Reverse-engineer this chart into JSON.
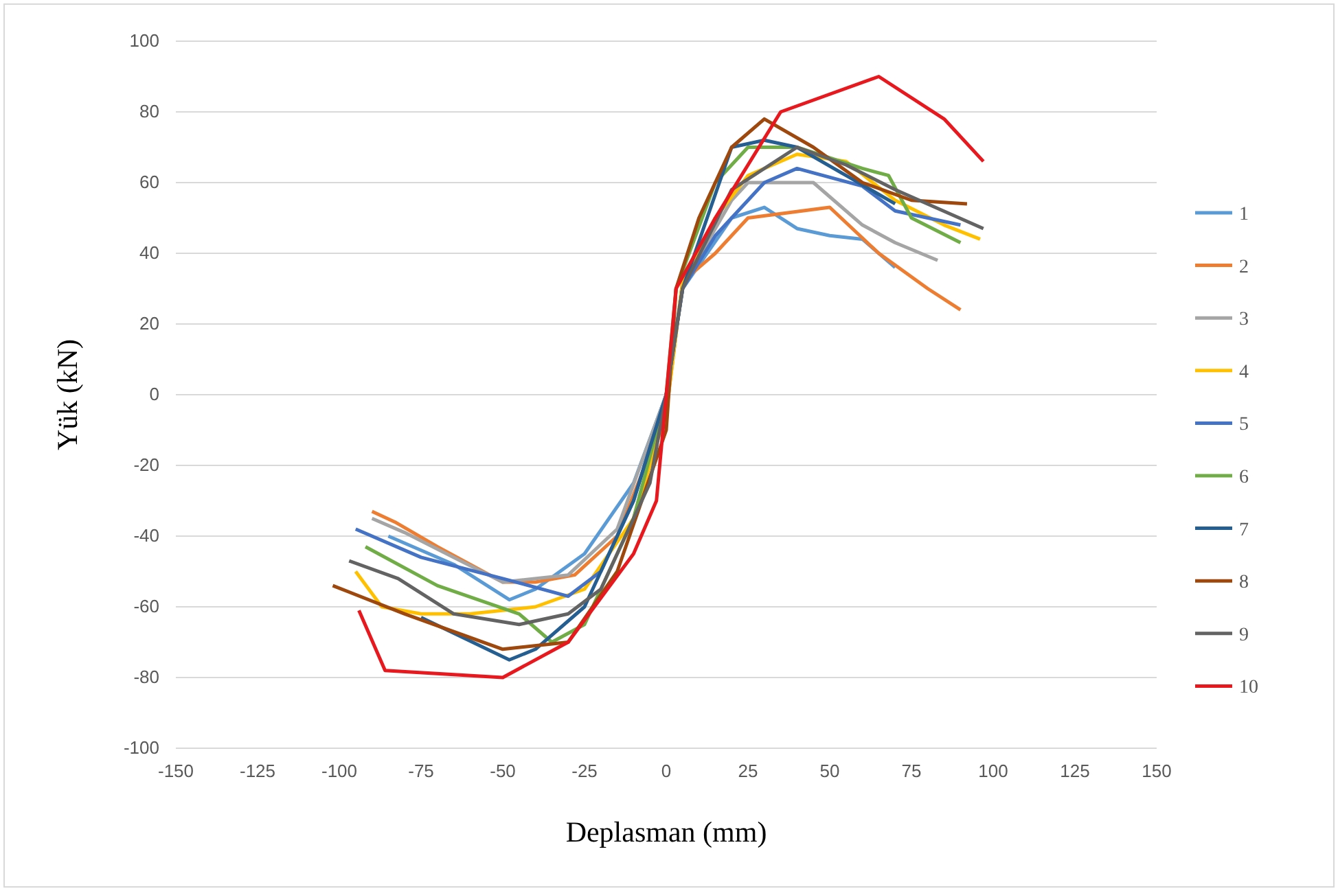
{
  "chart_data": {
    "type": "line",
    "xlabel": "Deplasman (mm)",
    "ylabel": "Yük (kN)",
    "xlim": [
      -150,
      150
    ],
    "ylim": [
      -100,
      100
    ],
    "xticks": [
      -150,
      -125,
      -100,
      -75,
      -50,
      -25,
      0,
      25,
      50,
      75,
      100,
      125,
      150
    ],
    "yticks": [
      -100,
      -80,
      -60,
      -40,
      -20,
      0,
      20,
      40,
      60,
      80,
      100
    ],
    "grid": "y",
    "legend": "right",
    "marker": "none",
    "line_style": "solid",
    "series": [
      {
        "name": "1",
        "color": "#5b9bd5",
        "x": [
          -85,
          -65,
          -48,
          -40,
          -25,
          -10,
          0,
          5,
          20,
          30,
          40,
          50,
          60,
          70
        ],
        "values": [
          -40,
          -48,
          -58,
          -55,
          -45,
          -25,
          0,
          30,
          50,
          53,
          47,
          45,
          44,
          36
        ]
      },
      {
        "name": "2",
        "color": "#ed7d31",
        "x": [
          -90,
          -83,
          -70,
          -50,
          -40,
          -28,
          -15,
          0,
          5,
          15,
          25,
          50,
          65,
          80,
          90
        ],
        "values": [
          -33,
          -36,
          -43,
          -53,
          -53,
          -51,
          -40,
          -5,
          32,
          40,
          50,
          53,
          40,
          30,
          24
        ]
      },
      {
        "name": "3",
        "color": "#a5a5a5",
        "x": [
          -90,
          -80,
          -65,
          -50,
          -30,
          -15,
          0,
          5,
          20,
          25,
          45,
          60,
          70,
          83
        ],
        "values": [
          -35,
          -39,
          -46,
          -53,
          -51,
          -38,
          0,
          31,
          55,
          60,
          60,
          48,
          43,
          38
        ]
      },
      {
        "name": "4",
        "color": "#ffc000",
        "x": [
          -95,
          -87,
          -75,
          -60,
          -40,
          -25,
          -10,
          0,
          5,
          15,
          25,
          40,
          55,
          70,
          85,
          96
        ],
        "values": [
          -50,
          -60,
          -62,
          -62,
          -60,
          -55,
          -35,
          -5,
          32,
          50,
          62,
          68,
          66,
          55,
          48,
          44
        ]
      },
      {
        "name": "5",
        "color": "#4472c4",
        "x": [
          -95,
          -75,
          -50,
          -30,
          -20,
          -10,
          0,
          5,
          15,
          30,
          40,
          60,
          70,
          90
        ],
        "values": [
          -38,
          -46,
          -52,
          -57,
          -50,
          -30,
          0,
          30,
          45,
          60,
          64,
          59,
          52,
          48
        ]
      },
      {
        "name": "6",
        "color": "#70ad47",
        "x": [
          -92,
          -70,
          -45,
          -35,
          -25,
          -10,
          0,
          3,
          15,
          25,
          40,
          60,
          68,
          75,
          90
        ],
        "values": [
          -43,
          -54,
          -62,
          -70,
          -65,
          -35,
          0,
          30,
          60,
          70,
          70,
          64,
          62,
          50,
          43
        ]
      },
      {
        "name": "7",
        "color": "#255e91",
        "x": [
          -75,
          -48,
          -40,
          -25,
          -10,
          0,
          5,
          20,
          30,
          40,
          55,
          70
        ],
        "values": [
          -63,
          -75,
          -72,
          -60,
          -30,
          0,
          30,
          70,
          72,
          70,
          62,
          54
        ]
      },
      {
        "name": "8",
        "color": "#9e480e",
        "x": [
          -102,
          -80,
          -50,
          -30,
          -15,
          0,
          3,
          10,
          20,
          30,
          45,
          60,
          75,
          92
        ],
        "values": [
          -54,
          -62,
          -72,
          -70,
          -50,
          -10,
          30,
          50,
          70,
          78,
          70,
          60,
          55,
          54
        ]
      },
      {
        "name": "9",
        "color": "#636363",
        "x": [
          -97,
          -82,
          -65,
          -45,
          -30,
          -20,
          -5,
          0,
          5,
          20,
          40,
          55,
          70,
          97
        ],
        "values": [
          -47,
          -52,
          -62,
          -65,
          -62,
          -55,
          -25,
          0,
          30,
          58,
          70,
          65,
          58,
          47
        ]
      },
      {
        "name": "10",
        "color": "#e8191e",
        "x": [
          -94,
          -86,
          -50,
          -30,
          -10,
          -3,
          0,
          3,
          15,
          35,
          65,
          85,
          97
        ],
        "values": [
          -61,
          -78,
          -80,
          -70,
          -45,
          -30,
          0,
          30,
          50,
          80,
          90,
          78,
          66
        ]
      }
    ]
  }
}
